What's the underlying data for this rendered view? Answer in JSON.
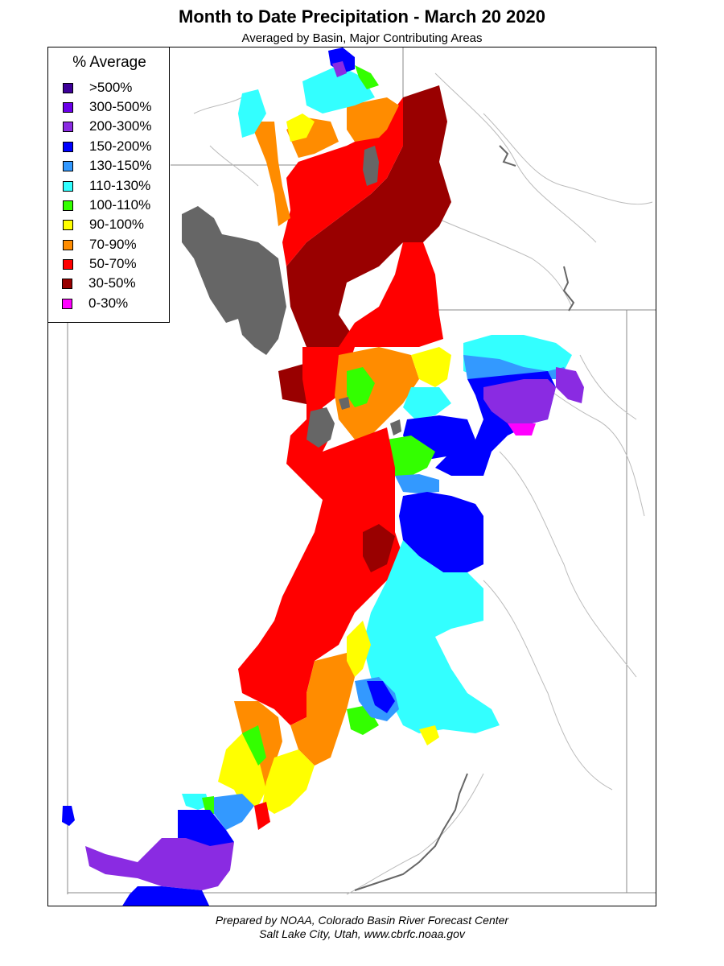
{
  "title": "Month to Date Precipitation - March 20 2020",
  "subtitle": "Averaged by Basin, Major Contributing Areas",
  "legend": {
    "title": "% Average",
    "items": [
      {
        "label": ">500%",
        "color": "#3d0099"
      },
      {
        "label": "300-500%",
        "color": "#6a00e8"
      },
      {
        "label": "200-300%",
        "color": "#8a2be2"
      },
      {
        "label": "150-200%",
        "color": "#0000ff"
      },
      {
        "label": "130-150%",
        "color": "#3399ff"
      },
      {
        "label": "110-130%",
        "color": "#33ffff"
      },
      {
        "label": "100-110%",
        "color": "#33ff00"
      },
      {
        "label": "90-100%",
        "color": "#ffff00"
      },
      {
        "label": "70-90%",
        "color": "#ff8c00"
      },
      {
        "label": "50-70%",
        "color": "#ff0000"
      },
      {
        "label": "30-50%",
        "color": "#990000"
      },
      {
        "label": "0-30%",
        "color": "#ff00ff"
      }
    ]
  },
  "footer": {
    "line1": "Prepared by NOAA, Colorado Basin River Forecast Center",
    "line2": "Salt Lake City, Utah, www.cbrfc.noaa.gov"
  },
  "colors": {
    "lake": "#666666",
    "boundary": "#888888",
    "river": "#bbbbbb"
  }
}
